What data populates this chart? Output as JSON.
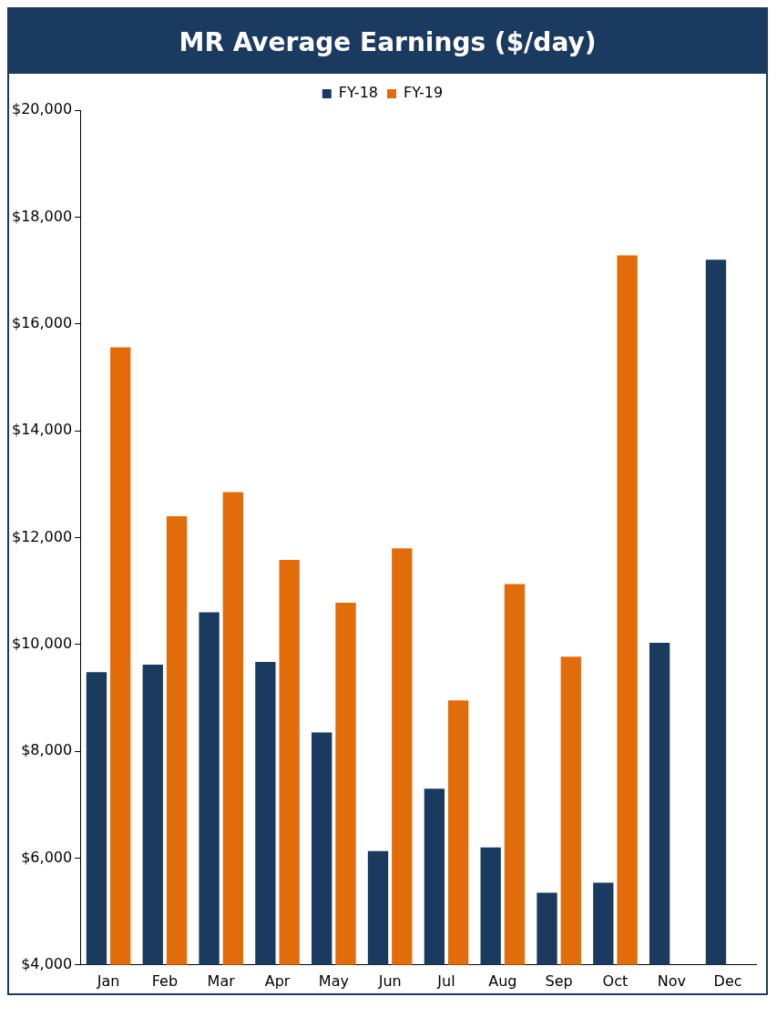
{
  "chart_data": {
    "type": "bar",
    "title": "MR Average Earnings ($/day)",
    "categories": [
      "Jan",
      "Feb",
      "Mar",
      "Apr",
      "May",
      "Jun",
      "Jul",
      "Aug",
      "Sep",
      "Oct",
      "Nov",
      "Dec"
    ],
    "series": [
      {
        "name": "FY-18",
        "color": "#1b3a5f",
        "values": [
          9480,
          9620,
          10600,
          9670,
          8350,
          6130,
          7300,
          6200,
          5350,
          5540,
          10030,
          17200
        ]
      },
      {
        "name": "FY-19",
        "color": "#e36c0a",
        "values": [
          15560,
          12400,
          12850,
          11580,
          10780,
          11800,
          8950,
          11130,
          9770,
          17280,
          null,
          null
        ]
      }
    ],
    "ylim": [
      4000,
      20000
    ],
    "yticks": [
      {
        "value": 4000,
        "label": "$4,000"
      },
      {
        "value": 6000,
        "label": "$6,000"
      },
      {
        "value": 8000,
        "label": "$8,000"
      },
      {
        "value": 10000,
        "label": "$10,000"
      },
      {
        "value": 12000,
        "label": "$12,000"
      },
      {
        "value": 14000,
        "label": "$14,000"
      },
      {
        "value": 16000,
        "label": "$16,000"
      },
      {
        "value": 18000,
        "label": "$18,000"
      },
      {
        "value": 20000,
        "label": "$20,000"
      }
    ],
    "grid": false,
    "legend": "top"
  }
}
